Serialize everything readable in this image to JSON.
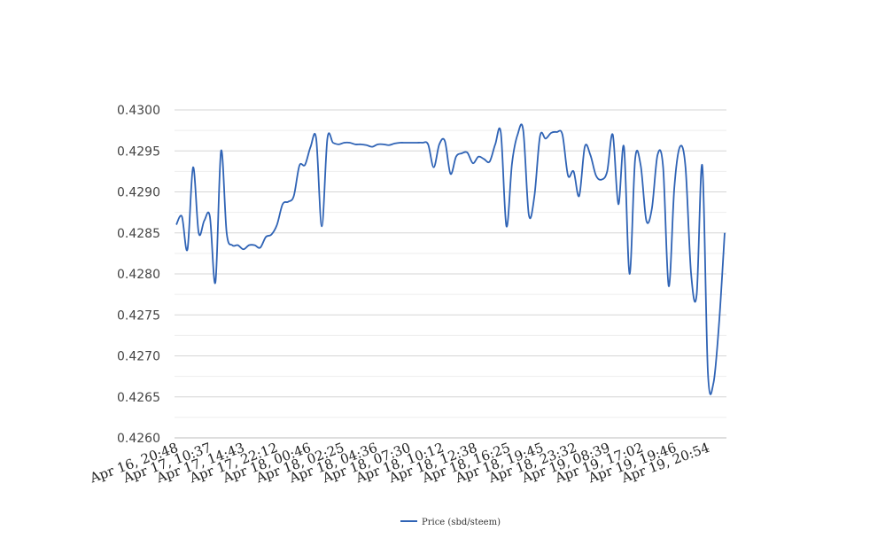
{
  "chart_data": {
    "type": "line",
    "title": "",
    "xlabel": "",
    "ylabel": "",
    "ylim": [
      0.426,
      0.43
    ],
    "y_ticks": [
      "0.4300",
      "0.4295",
      "0.4290",
      "0.4285",
      "0.4280",
      "0.4275",
      "0.4270",
      "0.4265",
      "0.4260"
    ],
    "x_ticks": [
      "Apr 16, 20:48",
      "Apr 17, 10:37",
      "Apr 17, 14:43",
      "Apr 17, 22:12",
      "Apr 18, 00:46",
      "Apr 18, 02:25",
      "Apr 18, 04:36",
      "Apr 18, 07:30",
      "Apr 18, 10:12",
      "Apr 18, 12:38",
      "Apr 18, 16:25",
      "Apr 18, 19:45",
      "Apr 18, 23:32",
      "Apr 19, 08:39",
      "Apr 19, 17:02",
      "Apr 19, 19:46",
      "Apr 19, 20:54"
    ],
    "grid": true,
    "legend_position": "bottom",
    "series": [
      {
        "name": "Price (sbd/steem)",
        "color": "#2f63b5",
        "values": [
          0.4286,
          0.4287,
          0.4283,
          0.4293,
          0.4285,
          0.42865,
          0.4287,
          0.4279,
          0.4295,
          0.4285,
          0.42835,
          0.42835,
          0.4283,
          0.42835,
          0.42835,
          0.42832,
          0.42845,
          0.42848,
          0.4286,
          0.42885,
          0.42888,
          0.42895,
          0.42932,
          0.42933,
          0.42955,
          0.42965,
          0.42858,
          0.42965,
          0.4296,
          0.42958,
          0.4296,
          0.4296,
          0.42958,
          0.42958,
          0.42957,
          0.42955,
          0.42958,
          0.42958,
          0.42957,
          0.42959,
          0.4296,
          0.4296,
          0.4296,
          0.4296,
          0.4296,
          0.42958,
          0.4293,
          0.42958,
          0.42962,
          0.42922,
          0.42943,
          0.42947,
          0.42948,
          0.42935,
          0.42943,
          0.4294,
          0.42937,
          0.42958,
          0.42972,
          0.42858,
          0.42935,
          0.4297,
          0.42975,
          0.42872,
          0.42895,
          0.42968,
          0.42965,
          0.42972,
          0.42973,
          0.4297,
          0.4292,
          0.42925,
          0.42895,
          0.42955,
          0.42945,
          0.4292,
          0.42915,
          0.42925,
          0.4297,
          0.42885,
          0.42955,
          0.428,
          0.4294,
          0.42932,
          0.42865,
          0.4288,
          0.42945,
          0.4293,
          0.42785,
          0.42905,
          0.42955,
          0.4293,
          0.428,
          0.42775,
          0.42932,
          0.4268,
          0.42667,
          0.4274,
          0.4285
        ]
      }
    ]
  }
}
